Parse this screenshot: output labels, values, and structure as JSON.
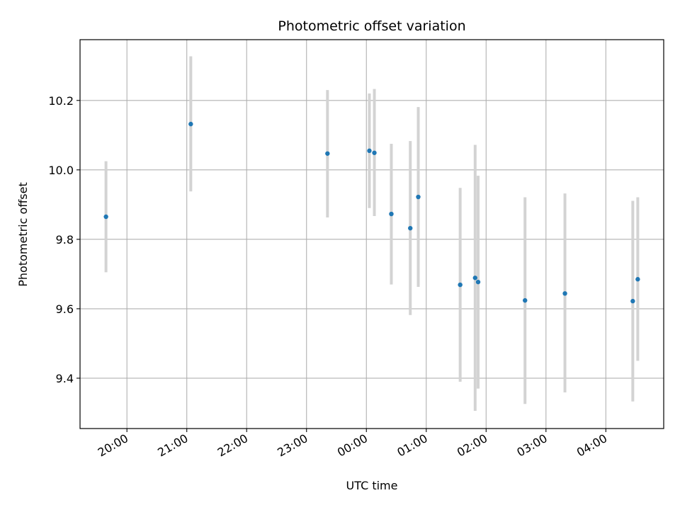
{
  "chart_data": {
    "type": "scatter",
    "title": "Photometric offset variation",
    "xlabel": "UTC time",
    "ylabel": "Photometric offset",
    "x_axis_kind": "time",
    "x_base_date": "",
    "xlim": [
      "19:13",
      "28:58"
    ],
    "ylim": [
      9.255,
      10.375
    ],
    "grid": true,
    "x_ticks": [
      {
        "t": "20:00",
        "label": "20:00"
      },
      {
        "t": "21:00",
        "label": "21:00"
      },
      {
        "t": "22:00",
        "label": "22:00"
      },
      {
        "t": "23:00",
        "label": "23:00"
      },
      {
        "t": "24:00",
        "label": "00:00"
      },
      {
        "t": "25:00",
        "label": "01:00"
      },
      {
        "t": "26:00",
        "label": "02:00"
      },
      {
        "t": "27:00",
        "label": "03:00"
      },
      {
        "t": "28:00",
        "label": "04:00"
      }
    ],
    "y_ticks": [
      9.4,
      9.6,
      9.8,
      10.0,
      10.2
    ],
    "y_tick_labels": [
      "9.4",
      "9.6",
      "9.8",
      "10.0",
      "10.2"
    ],
    "marker_color": "#1f77b4",
    "errorbar_color": "#d3d3d3",
    "points": [
      {
        "t": "19:39",
        "y": 9.865,
        "ylow": 9.705,
        "yhigh": 10.025
      },
      {
        "t": "21:04",
        "y": 10.132,
        "ylow": 9.938,
        "yhigh": 10.327
      },
      {
        "t": "23:21",
        "y": 10.047,
        "ylow": 9.863,
        "yhigh": 10.23
      },
      {
        "t": "24:03",
        "y": 10.055,
        "ylow": 9.89,
        "yhigh": 10.22
      },
      {
        "t": "24:08",
        "y": 10.049,
        "ylow": 9.867,
        "yhigh": 10.233
      },
      {
        "t": "24:25",
        "y": 9.873,
        "ylow": 9.67,
        "yhigh": 10.075
      },
      {
        "t": "24:44",
        "y": 9.832,
        "ylow": 9.582,
        "yhigh": 10.083
      },
      {
        "t": "24:52",
        "y": 9.922,
        "ylow": 9.663,
        "yhigh": 10.181
      },
      {
        "t": "25:34",
        "y": 9.669,
        "ylow": 9.39,
        "yhigh": 9.948
      },
      {
        "t": "25:49",
        "y": 9.689,
        "ylow": 9.306,
        "yhigh": 10.072
      },
      {
        "t": "25:52",
        "y": 9.677,
        "ylow": 9.37,
        "yhigh": 9.983
      },
      {
        "t": "26:39",
        "y": 9.624,
        "ylow": 9.326,
        "yhigh": 9.921
      },
      {
        "t": "27:19",
        "y": 9.644,
        "ylow": 9.359,
        "yhigh": 9.932
      },
      {
        "t": "28:27",
        "y": 9.622,
        "ylow": 9.333,
        "yhigh": 9.911
      },
      {
        "t": "28:32",
        "y": 9.685,
        "ylow": 9.45,
        "yhigh": 9.921
      }
    ]
  }
}
